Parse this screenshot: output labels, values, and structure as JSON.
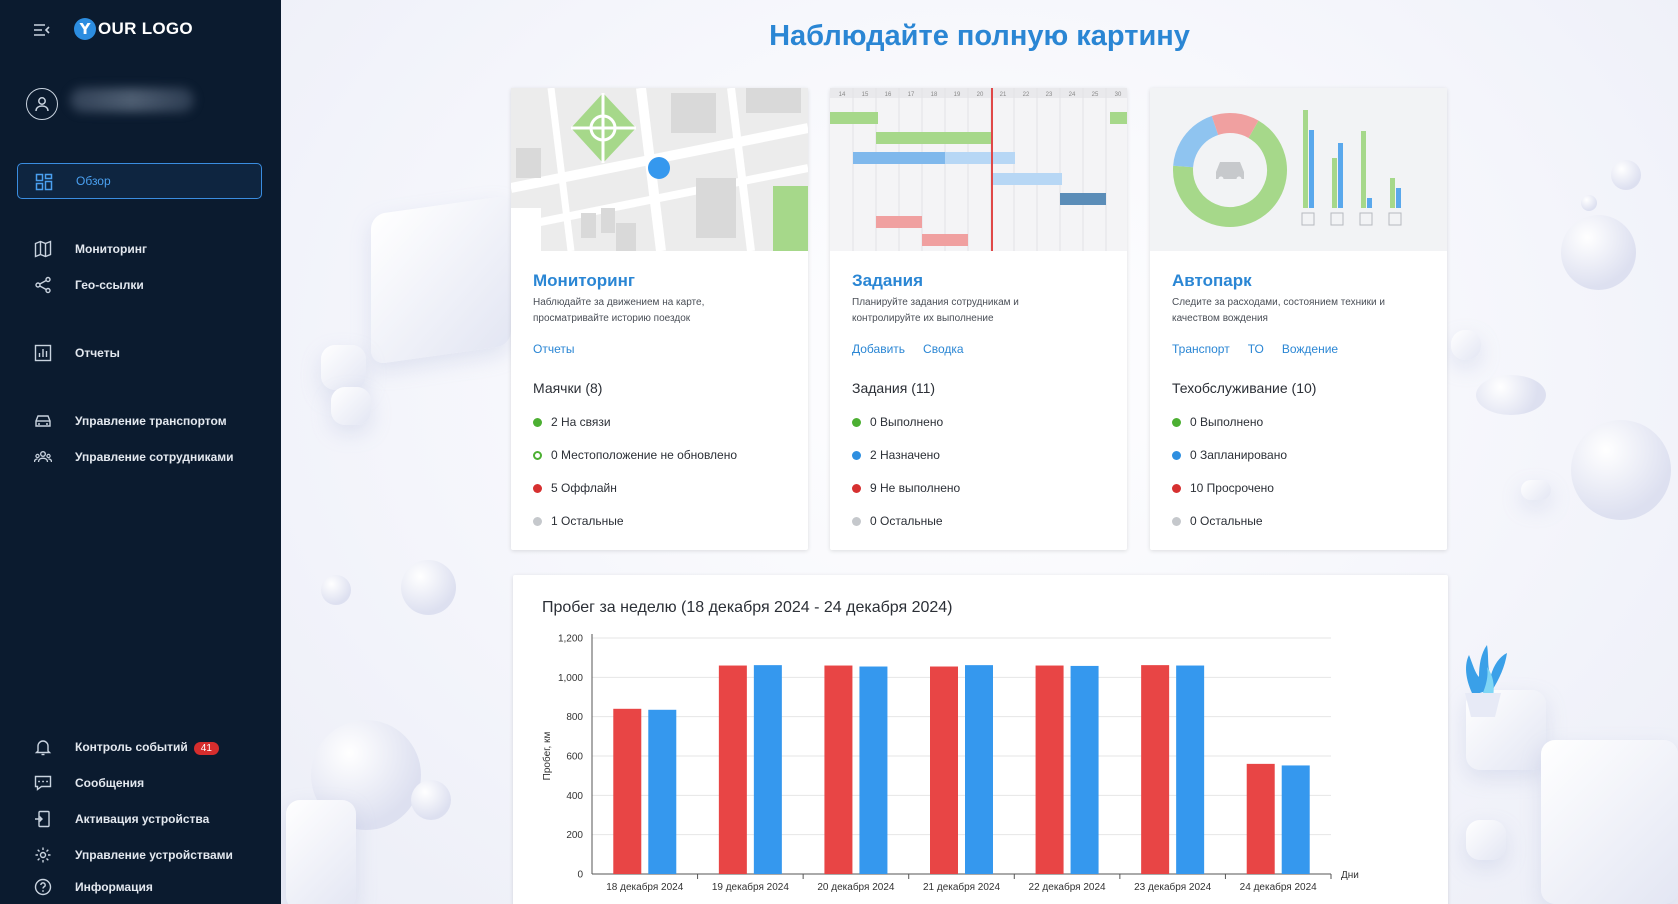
{
  "sidebar": {
    "logo_letter": "Y",
    "logo_text": "OUR LOGO",
    "items": [
      {
        "label": "Обзор",
        "icon": "dashboard-icon"
      },
      {
        "label": "Мониторинг",
        "icon": "map-icon"
      },
      {
        "label": "Гео-ссылки",
        "icon": "share-icon"
      },
      {
        "label": "Отчеты",
        "icon": "report-icon"
      },
      {
        "label": "Управление транспортом",
        "icon": "car-icon"
      },
      {
        "label": "Управление сотрудниками",
        "icon": "users-icon"
      },
      {
        "label": "Контроль событий",
        "icon": "bell-icon",
        "badge": "41"
      },
      {
        "label": "Сообщения",
        "icon": "message-icon"
      },
      {
        "label": "Активация устройства",
        "icon": "device-activate-icon"
      },
      {
        "label": "Управление устройствами",
        "icon": "gear-icon"
      },
      {
        "label": "Информация",
        "icon": "help-icon"
      }
    ]
  },
  "main": {
    "title": "Наблюдайте полную картину",
    "cards": [
      {
        "title": "Мониторинг",
        "desc_line1": "Наблюдайте за движением на карте,",
        "desc_line2": "просматривайте историю поездок",
        "links": [
          "Отчеты"
        ],
        "subtitle": "Маячки (8)",
        "stats": [
          {
            "label": "2 На связи",
            "color": "#4caf32",
            "style": "filled"
          },
          {
            "label": "0 Местоположение не обновлено",
            "color": "#4caf32",
            "style": "ring"
          },
          {
            "label": "5 Оффлайн",
            "color": "#d63030",
            "style": "filled"
          },
          {
            "label": "1 Остальные",
            "color": "#c5c8cc",
            "style": "filled"
          }
        ]
      },
      {
        "title": "Задания",
        "desc_line1": "Планируйте задания сотрудникам и",
        "desc_line2": "контролируйте их выполнение",
        "links": [
          "Добавить",
          "Сводка"
        ],
        "subtitle": "Задания (11)",
        "stats": [
          {
            "label": "0 Выполнено",
            "color": "#4caf32",
            "style": "filled"
          },
          {
            "label": "2 Назначено",
            "color": "#2f8fe0",
            "style": "filled"
          },
          {
            "label": "9 Не выполнено",
            "color": "#d63030",
            "style": "filled"
          },
          {
            "label": "0 Остальные",
            "color": "#c5c8cc",
            "style": "filled"
          }
        ],
        "gantt_days": [
          "14",
          "15",
          "16",
          "17",
          "18",
          "19",
          "20",
          "21",
          "22",
          "23",
          "24",
          "25",
          "30"
        ]
      },
      {
        "title": "Автопарк",
        "desc_line1": "Следите за расходами, состоянием техники и",
        "desc_line2": "качеством вождения",
        "links": [
          "Транспорт",
          "ТО",
          "Вождение"
        ],
        "subtitle": "Техобслуживание (10)",
        "stats": [
          {
            "label": "0 Выполнено",
            "color": "#4caf32",
            "style": "filled"
          },
          {
            "label": "0 Запланировано",
            "color": "#2f8fe0",
            "style": "filled"
          },
          {
            "label": "10 Просрочено",
            "color": "#d63030",
            "style": "filled"
          },
          {
            "label": "0 Остальные",
            "color": "#c5c8cc",
            "style": "filled"
          }
        ]
      }
    ]
  },
  "chart_data": {
    "type": "bar",
    "title": "Пробег за неделю (18 декабря 2024 - 24 декабря 2024)",
    "xlabel": "Дни",
    "ylabel": "Пробег, км",
    "ylim": [
      0,
      1200
    ],
    "yticks": [
      "0",
      "200",
      "400",
      "600",
      "800",
      "1,000",
      "1,200"
    ],
    "grid": true,
    "categories": [
      "18 декабря 2024",
      "19 декабря 2024",
      "20 декабря 2024",
      "21 декабря 2024",
      "22 декабря 2024",
      "23 декабря 2024",
      "24 декабря 2024"
    ],
    "series": [
      {
        "color": "#e84545",
        "values": [
          840,
          1060,
          1060,
          1055,
          1060,
          1062,
          560
        ]
      },
      {
        "color": "#3598ee",
        "values": [
          835,
          1062,
          1055,
          1062,
          1058,
          1060,
          552
        ]
      }
    ]
  }
}
